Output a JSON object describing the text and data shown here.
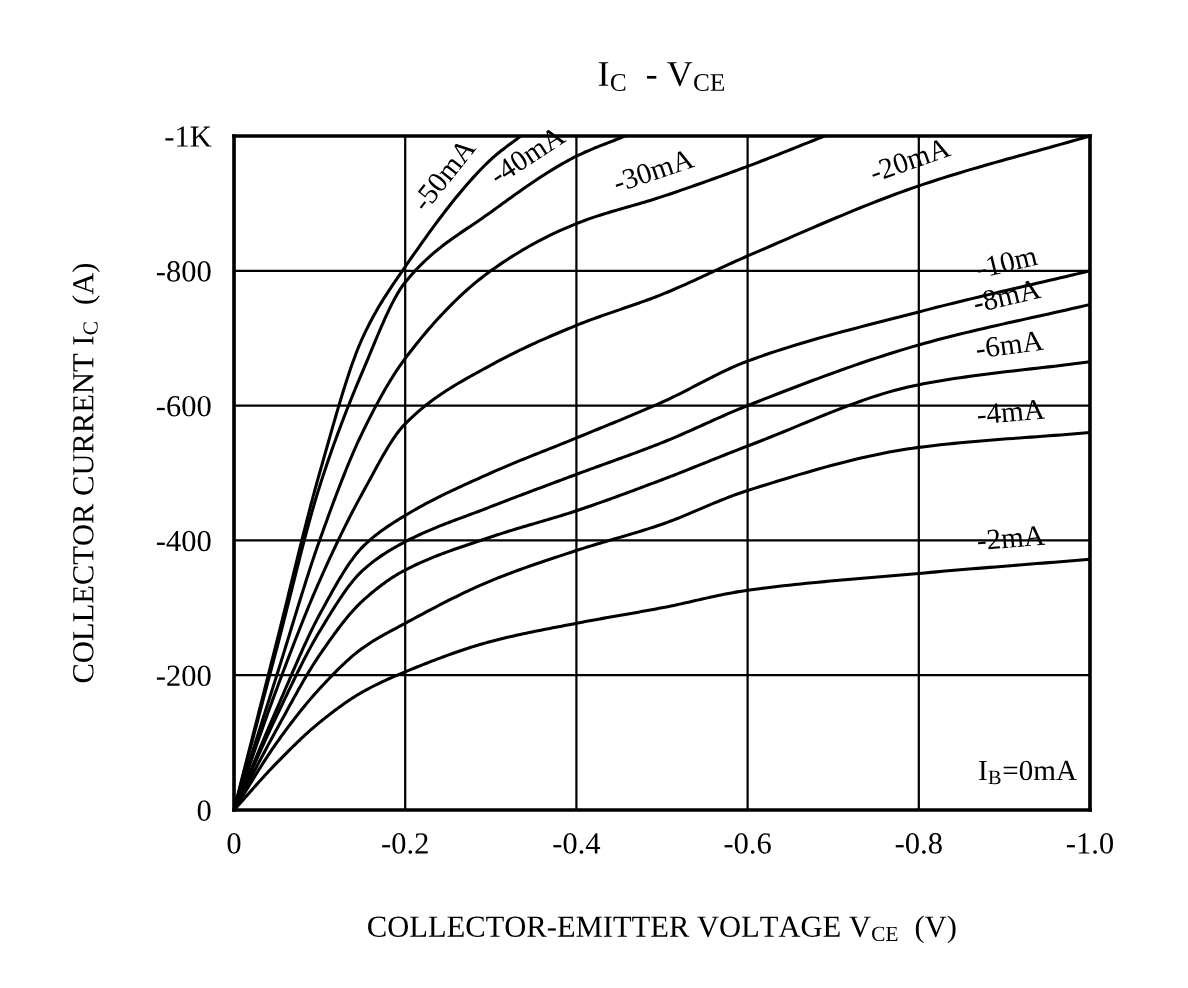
{
  "chart_data": {
    "type": "line",
    "title": "I$_{C}$  - V$_{CE}$",
    "xlabel": "COLLECTOR-EMITTER VOLTAGE V$_{CE}$  (V)",
    "ylabel": "COLLECTOR CURRENT I$_{C}$  (A)",
    "xlim": [
      0,
      -1.0
    ],
    "ylim": [
      0,
      -1000
    ],
    "xticks": [
      0,
      -0.2,
      -0.4,
      -0.6,
      -0.8,
      {
        "value": -1.0,
        "label": "-1.0"
      }
    ],
    "yticks": [
      0,
      -200,
      -400,
      -600,
      -800,
      {
        "value": -1000,
        "label": "-1K"
      }
    ],
    "grid": true,
    "legend": false,
    "marker": "none",
    "line_style": "solid",
    "series": [
      {
        "color": "#000000",
        "x": [
          0,
          -0.05,
          -0.1,
          -0.15,
          -0.2,
          -0.3,
          -0.335
        ],
        "values": [
          0,
          -250,
          -500,
          -700,
          -806,
          -965,
          -1000
        ]
      },
      {
        "color": "#000000",
        "x": [
          0,
          -0.05,
          -0.1,
          -0.15,
          -0.2,
          -0.3,
          -0.4,
          -0.457
        ],
        "values": [
          0,
          -240,
          -480,
          -650,
          -783,
          -887,
          -970,
          -1000
        ]
      },
      {
        "color": "#000000",
        "x": [
          0,
          -0.05,
          -0.1,
          -0.15,
          -0.2,
          -0.3,
          -0.4,
          -0.5,
          -0.6,
          -0.69
        ],
        "values": [
          0,
          -200,
          -400,
          -560,
          -670,
          -800,
          -870,
          -910,
          -955,
          -1000
        ]
      },
      {
        "color": "#000000",
        "x": [
          0,
          -0.05,
          -0.1,
          -0.15,
          -0.2,
          -0.3,
          -0.4,
          -0.5,
          -0.6,
          -0.8,
          -1.0
        ],
        "values": [
          0,
          -180,
          -340,
          -470,
          -573,
          -660,
          -719,
          -765,
          -822,
          -926,
          -1000
        ]
      },
      {
        "color": "#000000",
        "x": [
          0,
          -0.05,
          -0.1,
          -0.15,
          -0.2,
          -0.3,
          -0.4,
          -0.5,
          -0.6,
          -0.8,
          -1.0
        ],
        "values": [
          0,
          -150,
          -290,
          -390,
          -437,
          -500,
          -552,
          -605,
          -666,
          -739,
          -800
        ]
      },
      {
        "color": "#000000",
        "x": [
          0,
          -0.05,
          -0.1,
          -0.15,
          -0.2,
          -0.3,
          -0.4,
          -0.5,
          -0.6,
          -0.8,
          -1.0
        ],
        "values": [
          0,
          -140,
          -265,
          -355,
          -398,
          -450,
          -498,
          -545,
          -600,
          -690,
          -750
        ]
      },
      {
        "color": "#000000",
        "x": [
          0,
          -0.05,
          -0.1,
          -0.15,
          -0.2,
          -0.3,
          -0.4,
          -0.5,
          -0.6,
          -0.8,
          -1.0
        ],
        "values": [
          0,
          -120,
          -230,
          -310,
          -356,
          -405,
          -444,
          -490,
          -540,
          -631,
          -665
        ]
      },
      {
        "color": "#000000",
        "x": [
          0,
          -0.05,
          -0.1,
          -0.15,
          -0.2,
          -0.3,
          -0.4,
          -0.5,
          -0.6,
          -0.8,
          -1.0
        ],
        "values": [
          0,
          -100,
          -180,
          -240,
          -277,
          -340,
          -385,
          -424,
          -474,
          -538,
          -560
        ]
      },
      {
        "color": "#000000",
        "x": [
          0,
          -0.05,
          -0.1,
          -0.15,
          -0.2,
          -0.3,
          -0.4,
          -0.5,
          -0.6,
          -0.8,
          -1.0
        ],
        "values": [
          0,
          -70,
          -130,
          -175,
          -205,
          -250,
          -277,
          -300,
          -326,
          -351,
          -372
        ]
      }
    ],
    "annotations": [
      {
        "text": "-50mA",
        "x": -0.27,
        "y": -917
      },
      {
        "text": "-40mA",
        "x": -0.36,
        "y": -937
      },
      {
        "text": "-30mA",
        "x": -0.5,
        "y": -910
      },
      {
        "text": "-20mA",
        "x": -0.8,
        "y": -926
      },
      {
        "text": "-10m",
        "x": -0.91,
        "y": -773
      },
      {
        "text": "-8mA",
        "x": -0.91,
        "y": -723
      },
      {
        "text": "-6mA",
        "x": -0.91,
        "y": -650
      },
      {
        "text": "-4mA",
        "x": -0.91,
        "y": -550
      },
      {
        "text": "-2mA",
        "x": -0.91,
        "y": -363
      },
      "I$_{B}$=0mA"
    ]
  }
}
